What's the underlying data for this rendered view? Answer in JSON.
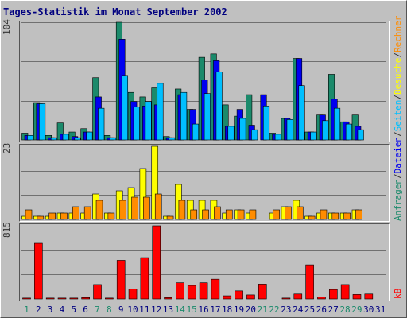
{
  "title": "Tages-Statistik im Monat September 2002",
  "chart_data": [
    {
      "type": "bar",
      "max_label": "104",
      "ymax": 104,
      "categories": [
        "1",
        "2",
        "3",
        "4",
        "5",
        "6",
        "7",
        "8",
        "9",
        "10",
        "11",
        "12",
        "13",
        "14",
        "15",
        "16",
        "17",
        "18",
        "19",
        "20",
        "21",
        "22",
        "23",
        "24",
        "25",
        "26",
        "27",
        "28",
        "29",
        "30",
        "31"
      ],
      "weekend_days": [
        "1",
        "7",
        "8",
        "14",
        "15",
        "21",
        "22",
        "28",
        "29"
      ],
      "series": [
        {
          "name": "Anfragen",
          "color": "#1b8a6b",
          "values": [
            6,
            33,
            4,
            15,
            7,
            10,
            55,
            4,
            104,
            42,
            38,
            46,
            3,
            45,
            27,
            73,
            76,
            31,
            21,
            40,
            0,
            6,
            19,
            72,
            7,
            22,
            58,
            16,
            22,
            0,
            0
          ]
        },
        {
          "name": "Dateien",
          "color": "#0000f0",
          "values": [
            4,
            32,
            2,
            5,
            3,
            7,
            38,
            2,
            89,
            34,
            30,
            31,
            2,
            40,
            27,
            53,
            70,
            12,
            27,
            13,
            40,
            5,
            19,
            72,
            7,
            22,
            36,
            16,
            12,
            0,
            0
          ]
        },
        {
          "name": "Seiten",
          "color": "#00bfff",
          "values": [
            4,
            32,
            2,
            5,
            2,
            7,
            28,
            2,
            57,
            29,
            34,
            50,
            2,
            42,
            14,
            41,
            60,
            12,
            19,
            9,
            30,
            5,
            18,
            48,
            7,
            17,
            28,
            14,
            9,
            0,
            0
          ]
        }
      ]
    },
    {
      "type": "bar",
      "max_label": "23",
      "ymax": 23,
      "categories": [
        "1",
        "2",
        "3",
        "4",
        "5",
        "6",
        "7",
        "8",
        "9",
        "10",
        "11",
        "12",
        "13",
        "14",
        "15",
        "16",
        "17",
        "18",
        "19",
        "20",
        "21",
        "22",
        "23",
        "24",
        "25",
        "26",
        "27",
        "28",
        "29",
        "30",
        "31"
      ],
      "series": [
        {
          "name": "Besuche",
          "color": "#ffff00",
          "values": [
            1,
            1,
            1,
            2,
            2,
            2,
            8,
            2,
            9,
            10,
            16,
            23,
            1,
            11,
            6,
            6,
            6,
            2,
            3,
            2,
            0,
            2,
            4,
            6,
            1,
            2,
            2,
            2,
            3,
            0,
            0
          ]
        },
        {
          "name": "Rechner",
          "color": "#ff8c00",
          "values": [
            3,
            1,
            2,
            2,
            4,
            4,
            6,
            2,
            6,
            7,
            7,
            8,
            1,
            6,
            3,
            3,
            4,
            3,
            3,
            3,
            0,
            3,
            4,
            4,
            1,
            3,
            2,
            2,
            3,
            0,
            0
          ]
        }
      ]
    },
    {
      "type": "bar",
      "max_label": "815",
      "ymax": 815,
      "categories": [
        "1",
        "2",
        "3",
        "4",
        "5",
        "6",
        "7",
        "8",
        "9",
        "10",
        "11",
        "12",
        "13",
        "14",
        "15",
        "16",
        "17",
        "18",
        "19",
        "20",
        "21",
        "22",
        "23",
        "24",
        "25",
        "26",
        "27",
        "28",
        "29",
        "30",
        "31"
      ],
      "series": [
        {
          "name": "kB",
          "color": "#ff0000",
          "values": [
            10,
            620,
            10,
            10,
            10,
            15,
            160,
            10,
            430,
            110,
            460,
            815,
            15,
            180,
            150,
            180,
            220,
            35,
            90,
            45,
            165,
            0,
            10,
            55,
            380,
            20,
            105,
            160,
            50,
            55,
            0
          ]
        }
      ]
    }
  ],
  "side_labels": {
    "top": [
      {
        "text": "Anfragen",
        "color": "#1b8a6b"
      },
      {
        "text": "/",
        "color": "#333333"
      },
      {
        "text": "Dateien",
        "color": "#0000f0"
      },
      {
        "text": "/",
        "color": "#333333"
      },
      {
        "text": "Seiten",
        "color": "#00bfff"
      },
      {
        "text": "/",
        "color": "#333333"
      },
      {
        "text": "Besuche",
        "color": "#ffff00"
      },
      {
        "text": "/",
        "color": "#333333"
      },
      {
        "text": "Rechner",
        "color": "#ff8c00"
      }
    ],
    "bottom": {
      "text": "kB",
      "color": "#ff0000"
    }
  },
  "x_label_colors": {
    "weekday": "#00007f",
    "weekend": "#1b8a6b"
  },
  "grid_color": "#707070"
}
